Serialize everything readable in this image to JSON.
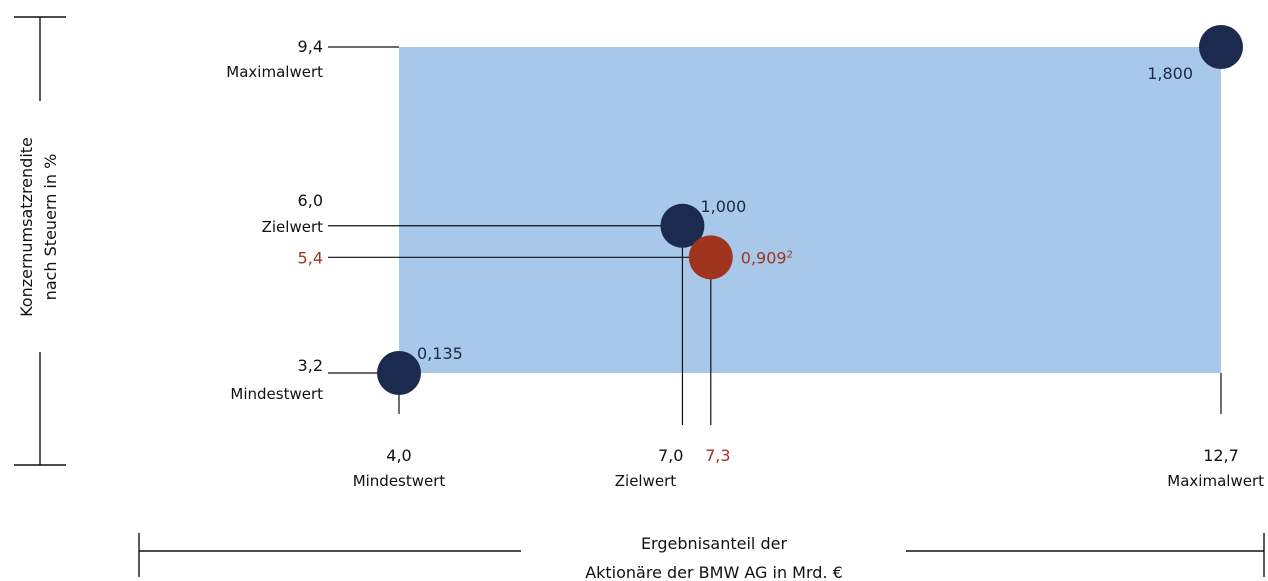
{
  "colors": {
    "background": "#ffffff",
    "region": "#a8c8ea",
    "dark": "#1b2a4e",
    "accent": "#a0341e",
    "text": "#111111",
    "line": "#111111"
  },
  "chart_data": {
    "type": "scatter",
    "xlabel_lines": [
      "Ergebnisanteil der",
      "Aktionäre der BMW AG in Mrd. €"
    ],
    "ylabel_lines": [
      "Konzernumsatzrendite",
      "nach Steuern in %"
    ],
    "xlim": [
      4.0,
      12.7
    ],
    "ylim": [
      3.2,
      9.4
    ],
    "region": {
      "x": [
        4.0,
        12.7
      ],
      "y": [
        3.2,
        9.4
      ]
    },
    "x_ticks": [
      {
        "value": 4.0,
        "label": "4,0",
        "sublabel": "Mindestwert",
        "color": "dark"
      },
      {
        "value": 7.0,
        "label": "7,0",
        "sublabel": "Zielwert",
        "color": "dark"
      },
      {
        "value": 7.3,
        "label": "7,3",
        "sublabel": "",
        "color": "accent"
      },
      {
        "value": 12.7,
        "label": "12,7",
        "sublabel": "Maximalwert",
        "color": "dark"
      }
    ],
    "y_ticks": [
      {
        "value": 9.4,
        "label": "9,4",
        "sublabel": "Maximalwert",
        "color": "dark"
      },
      {
        "value": 6.0,
        "label": "6,0",
        "sublabel": "Zielwert",
        "color": "dark"
      },
      {
        "value": 5.4,
        "label": "5,4",
        "sublabel": "",
        "color": "accent"
      },
      {
        "value": 3.2,
        "label": "3,2",
        "sublabel": "Mindestwert",
        "color": "dark"
      }
    ],
    "points": [
      {
        "x": 4.0,
        "y": 3.2,
        "value_label": "0,135",
        "superscript": "",
        "color": "dark",
        "label_pos": "upper-right"
      },
      {
        "x": 7.0,
        "y": 6.0,
        "value_label": "1,000",
        "superscript": "",
        "color": "dark",
        "label_pos": "upper-right"
      },
      {
        "x": 7.3,
        "y": 5.4,
        "value_label": "0,909",
        "superscript": "2",
        "color": "accent",
        "label_pos": "right"
      },
      {
        "x": 12.7,
        "y": 9.4,
        "value_label": "1,800",
        "superscript": "",
        "color": "dark",
        "label_pos": "lower-left"
      }
    ],
    "guide_lines": [
      {
        "x": 7.0,
        "y": 6.0
      },
      {
        "x": 7.3,
        "y": 5.4
      }
    ]
  }
}
